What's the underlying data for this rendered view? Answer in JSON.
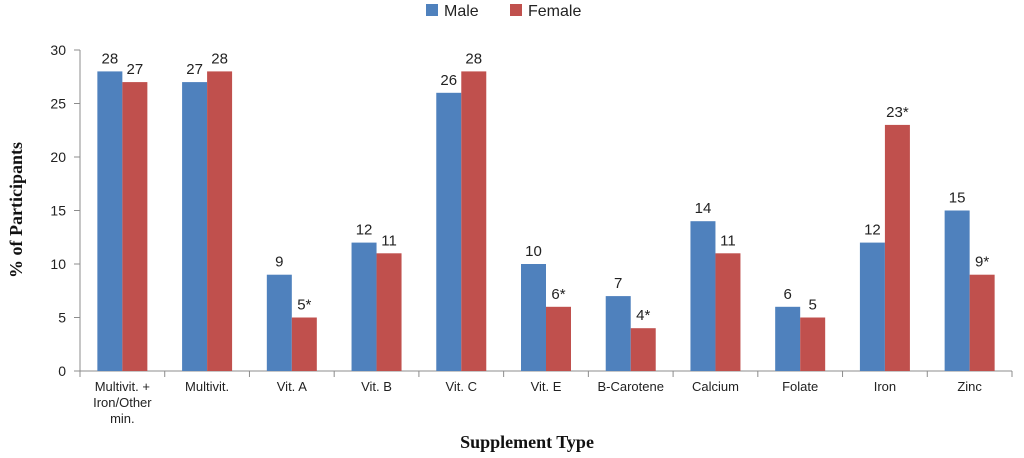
{
  "chart_data": {
    "type": "bar",
    "title": "",
    "xlabel": "Supplement Type",
    "ylabel": "% of Participants",
    "ylim": [
      0,
      30
    ],
    "yticks": [
      0,
      5,
      10,
      15,
      20,
      25,
      30
    ],
    "grid": false,
    "legend_position": "top",
    "categories": [
      [
        "Multivit. +",
        "Iron/Other",
        "min."
      ],
      [
        "Multivit."
      ],
      [
        "Vit. A"
      ],
      [
        "Vit. B"
      ],
      [
        "Vit. C"
      ],
      [
        "Vit. E"
      ],
      [
        "B-Carotene"
      ],
      [
        "Calcium"
      ],
      [
        "Folate"
      ],
      [
        "Iron"
      ],
      [
        "Zinc"
      ]
    ],
    "series": [
      {
        "name": "Male",
        "color": "#4f81bd",
        "values": [
          28,
          27,
          9,
          12,
          26,
          10,
          7,
          14,
          6,
          12,
          15
        ],
        "labels": [
          "28",
          "27",
          "9",
          "12",
          "26",
          "10",
          "7",
          "14",
          "6",
          "12",
          "15"
        ]
      },
      {
        "name": "Female",
        "color": "#c0504d",
        "values": [
          27,
          28,
          5,
          11,
          28,
          6,
          4,
          11,
          5,
          23,
          9
        ],
        "labels": [
          "27",
          "28",
          "5*",
          "11",
          "28",
          "6*",
          "4*",
          "11",
          "5",
          "23*",
          "9*"
        ]
      }
    ]
  }
}
